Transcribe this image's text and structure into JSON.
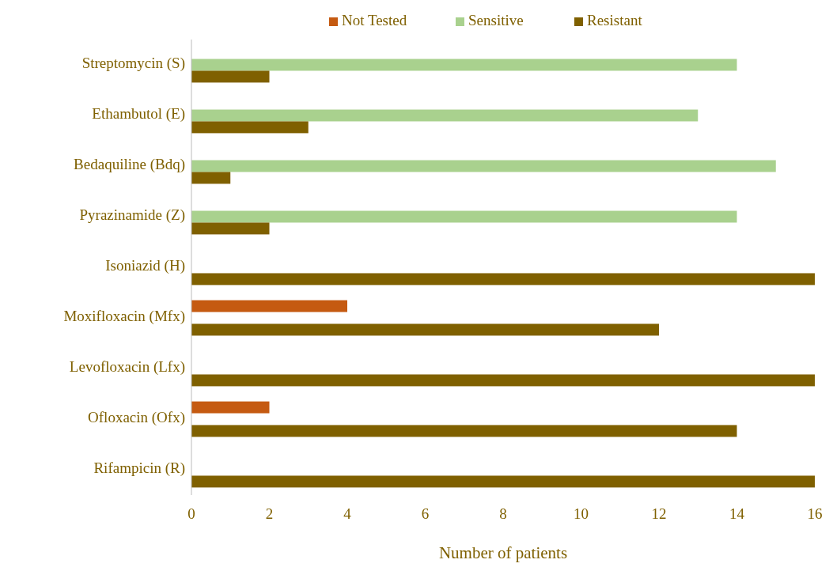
{
  "chart_data": {
    "type": "bar",
    "orientation": "horizontal",
    "xlabel": "Number of patients",
    "categories": [
      "Streptomycin (S)",
      "Ethambutol (E)",
      "Bedaquiline (Bdq)",
      "Pyrazinamide (Z)",
      "Isoniazid (H)",
      "Moxifloxacin (Mfx)",
      "Levofloxacin (Lfx)",
      "Ofloxacin (Ofx)",
      "Rifampicin (R)"
    ],
    "series": [
      {
        "name": "Not Tested",
        "color": "#c55a11",
        "values": [
          0,
          0,
          0,
          0,
          0,
          4,
          0,
          2,
          0
        ]
      },
      {
        "name": "Sensitive",
        "color": "#a9d18e",
        "values": [
          14,
          13,
          15,
          14,
          0,
          0,
          0,
          0,
          0
        ]
      },
      {
        "name": "Resistant",
        "color": "#7f6000",
        "values": [
          2,
          3,
          1,
          2,
          16,
          12,
          16,
          14,
          16
        ]
      }
    ],
    "xlim": [
      0,
      16
    ],
    "xticks": [
      0,
      2,
      4,
      6,
      8,
      10,
      12,
      14,
      16
    ],
    "legend": "top",
    "grid": false
  }
}
